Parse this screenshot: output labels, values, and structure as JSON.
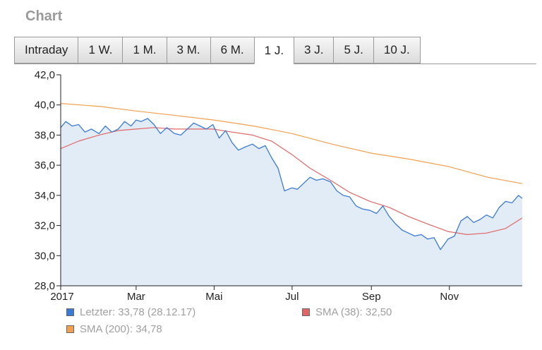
{
  "header": {
    "title": "Chart"
  },
  "tabs": [
    {
      "label": "Intraday",
      "active": false
    },
    {
      "label": "1 W.",
      "active": false
    },
    {
      "label": "1 M.",
      "active": false
    },
    {
      "label": "3 M.",
      "active": false
    },
    {
      "label": "6 M.",
      "active": false
    },
    {
      "label": "1 J.",
      "active": true
    },
    {
      "label": "3 J.",
      "active": false
    },
    {
      "label": "5 J.",
      "active": false
    },
    {
      "label": "10 J.",
      "active": false
    }
  ],
  "legend": {
    "last": {
      "label": "Letzter: 33,78 (28.12.17)",
      "color": "#3a7bd5"
    },
    "sma38": {
      "label": "SMA (38): 32,50",
      "color": "#e06666"
    },
    "sma200": {
      "label": "SMA (200): 34,78",
      "color": "#f0a050"
    }
  },
  "chart_data": {
    "type": "line",
    "x_label_ticks": [
      "2017",
      "Mar",
      "Mai",
      "Jul",
      "Sep",
      "Nov"
    ],
    "y_tick_labels": [
      "28,0",
      "30,0",
      "32,0",
      "34,0",
      "36,0",
      "38,0",
      "40,0",
      "42,0"
    ],
    "xlim": [
      "2017-01-01",
      "2017-12-28"
    ],
    "ylim": [
      28,
      42
    ],
    "grid": false,
    "legend_position": "bottom",
    "colors": {
      "last": "#3a7bd5",
      "last_fill": "#e2ecf7",
      "sma38": "#e06666",
      "sma200": "#f0a050"
    },
    "series": [
      {
        "name": "Letzter",
        "dates": [
          "2017-01-01",
          "2017-01-05",
          "2017-01-10",
          "2017-01-15",
          "2017-01-20",
          "2017-01-25",
          "2017-01-31",
          "2017-02-05",
          "2017-02-10",
          "2017-02-15",
          "2017-02-20",
          "2017-02-25",
          "2017-03-01",
          "2017-03-05",
          "2017-03-10",
          "2017-03-15",
          "2017-03-20",
          "2017-03-25",
          "2017-03-31",
          "2017-04-05",
          "2017-04-10",
          "2017-04-15",
          "2017-04-20",
          "2017-04-25",
          "2017-04-30",
          "2017-05-05",
          "2017-05-10",
          "2017-05-15",
          "2017-05-20",
          "2017-05-25",
          "2017-05-31",
          "2017-06-05",
          "2017-06-10",
          "2017-06-15",
          "2017-06-20",
          "2017-06-25",
          "2017-07-01",
          "2017-07-05",
          "2017-07-10",
          "2017-07-15",
          "2017-07-20",
          "2017-07-25",
          "2017-07-31",
          "2017-08-05",
          "2017-08-10",
          "2017-08-15",
          "2017-08-20",
          "2017-08-25",
          "2017-08-31",
          "2017-09-05",
          "2017-09-10",
          "2017-09-15",
          "2017-09-20",
          "2017-09-25",
          "2017-09-30",
          "2017-10-05",
          "2017-10-10",
          "2017-10-15",
          "2017-10-20",
          "2017-10-25",
          "2017-10-31",
          "2017-11-05",
          "2017-11-10",
          "2017-11-15",
          "2017-11-20",
          "2017-11-25",
          "2017-11-30",
          "2017-12-05",
          "2017-12-10",
          "2017-12-15",
          "2017-12-20",
          "2017-12-25",
          "2017-12-28"
        ],
        "values": [
          38.5,
          38.9,
          38.6,
          38.7,
          38.2,
          38.4,
          38.1,
          38.6,
          38.2,
          38.4,
          38.9,
          38.6,
          39.0,
          38.9,
          39.1,
          38.7,
          38.1,
          38.5,
          38.1,
          38.0,
          38.4,
          38.8,
          38.6,
          38.4,
          38.7,
          37.8,
          38.3,
          37.5,
          37.0,
          37.2,
          37.4,
          37.1,
          37.3,
          36.5,
          35.8,
          34.3,
          34.5,
          34.4,
          34.8,
          35.2,
          35.0,
          35.1,
          34.9,
          34.3,
          34.0,
          33.9,
          33.3,
          33.1,
          33.0,
          32.8,
          33.3,
          32.6,
          32.1,
          31.7,
          31.5,
          31.3,
          31.4,
          31.1,
          31.2,
          30.4,
          31.1,
          31.3,
          32.3,
          32.6,
          32.2,
          32.4,
          32.7,
          32.5,
          33.2,
          33.6,
          33.5,
          34.0,
          33.8
        ]
      },
      {
        "name": "SMA (38)",
        "dates": [
          "2017-01-01",
          "2017-01-15",
          "2017-01-31",
          "2017-02-15",
          "2017-03-01",
          "2017-03-15",
          "2017-03-31",
          "2017-04-15",
          "2017-04-30",
          "2017-05-15",
          "2017-05-31",
          "2017-06-15",
          "2017-07-01",
          "2017-07-15",
          "2017-07-31",
          "2017-08-15",
          "2017-08-31",
          "2017-09-15",
          "2017-09-30",
          "2017-10-15",
          "2017-10-31",
          "2017-11-15",
          "2017-11-30",
          "2017-12-15",
          "2017-12-28"
        ],
        "values": [
          37.1,
          37.6,
          38.0,
          38.3,
          38.4,
          38.5,
          38.4,
          38.4,
          38.4,
          38.2,
          38.0,
          37.6,
          36.7,
          35.8,
          35.0,
          34.2,
          33.6,
          33.2,
          32.6,
          32.1,
          31.6,
          31.4,
          31.5,
          31.8,
          32.5
        ]
      },
      {
        "name": "SMA (200)",
        "dates": [
          "2017-01-01",
          "2017-02-01",
          "2017-03-01",
          "2017-04-01",
          "2017-05-01",
          "2017-06-01",
          "2017-07-01",
          "2017-08-01",
          "2017-09-01",
          "2017-10-01",
          "2017-11-01",
          "2017-12-01",
          "2017-12-28"
        ],
        "values": [
          40.1,
          39.9,
          39.6,
          39.3,
          39.0,
          38.6,
          38.1,
          37.4,
          36.8,
          36.4,
          35.9,
          35.2,
          34.78
        ]
      }
    ]
  }
}
